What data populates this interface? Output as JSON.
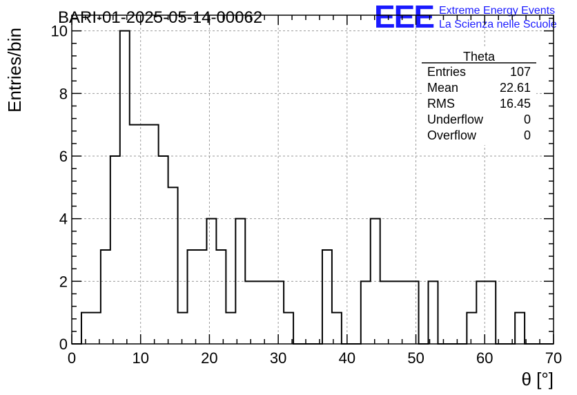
{
  "header": {
    "title": "BARI-01-2025-05-14-00062",
    "logo_text": "EEE",
    "logo_line1": "Extreme Energy Events",
    "logo_line2": "La Scienza nelle Scuole",
    "logo_color": "#1a1aff"
  },
  "stats": {
    "name": "Theta",
    "rows": [
      {
        "label": "Entries",
        "value": "107"
      },
      {
        "label": "Mean",
        "value": "22.61"
      },
      {
        "label": "RMS",
        "value": "16.45"
      },
      {
        "label": "Underflow",
        "value": "0"
      },
      {
        "label": "Overflow",
        "value": "0"
      }
    ]
  },
  "chart_data": {
    "type": "histogram",
    "xlabel": "θ [°]",
    "ylabel": "Entries/bin",
    "xlim": [
      0,
      70
    ],
    "ylim": [
      0,
      10.5
    ],
    "bin_edges": [
      0,
      1.4,
      2.8,
      4.2,
      5.6,
      7.0,
      8.4,
      9.8,
      11.2,
      12.6,
      14.0,
      15.4,
      16.8,
      18.2,
      19.6,
      21.0,
      22.4,
      23.8,
      25.2,
      26.6,
      28.0,
      29.4,
      30.8,
      32.2,
      33.6,
      35.0,
      36.4,
      37.8,
      39.2,
      40.6,
      42.0,
      43.4,
      44.8,
      46.2,
      47.6,
      49.0,
      50.4,
      51.8,
      53.2,
      54.6,
      56.0,
      57.4,
      58.8,
      60.2,
      61.6,
      63.0,
      64.4,
      65.8,
      67.2,
      68.6,
      70.0
    ],
    "values": [
      0,
      1,
      1,
      3,
      6,
      10,
      7,
      7,
      7,
      6,
      5,
      1,
      3,
      3,
      4,
      3,
      1,
      4,
      2,
      2,
      2,
      2,
      1,
      0,
      0,
      0,
      3,
      1,
      0,
      0,
      2,
      4,
      2,
      2,
      2,
      2,
      0,
      2,
      0,
      0,
      0,
      1,
      2,
      2,
      0,
      0,
      1,
      0,
      0,
      0
    ],
    "x_ticks": [
      0,
      10,
      20,
      30,
      40,
      50,
      60,
      70
    ],
    "x_tick_labels": [
      "0",
      "10",
      "20",
      "30",
      "40",
      "50",
      "60",
      "70"
    ],
    "y_ticks": [
      0,
      2,
      4,
      6,
      8,
      10
    ],
    "y_tick_labels": [
      "0",
      "2",
      "4",
      "6",
      "8",
      "10"
    ],
    "grid": true,
    "line_color": "#000000",
    "grid_color": "#9a9a9a"
  }
}
